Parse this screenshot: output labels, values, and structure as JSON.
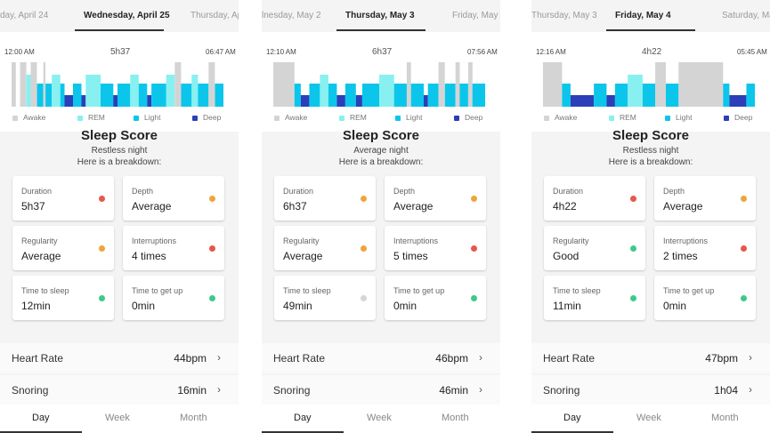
{
  "colors": {
    "awake": "#d4d4d4",
    "rem": "#88f0f0",
    "light": "#0bc6ea",
    "deep": "#2c3fb8",
    "status_red": "#e5584a",
    "status_orange": "#f0a43a",
    "status_green": "#3ec98a",
    "status_grey": "#d6d6d6"
  },
  "legend": [
    "Awake",
    "REM",
    "Light",
    "Deep"
  ],
  "bottom_tabs": [
    "Day",
    "Week",
    "Month"
  ],
  "labels": {
    "duration": "Duration",
    "depth": "Depth",
    "regularity": "Regularity",
    "interruptions": "Interruptions",
    "time_to_sleep": "Time to sleep",
    "time_to_get_up": "Time to get up",
    "heart_rate": "Heart Rate",
    "snoring": "Snoring",
    "breakdown": "Here is a breakdown:",
    "score_title": "Sleep Score"
  },
  "panels": [
    {
      "date_prev": "day, April 24",
      "date_active": "Wednesday, April 25",
      "date_next": "Thursday, Ap",
      "start_time": "12:00 AM",
      "total": "5h37",
      "end_time": "06:47 AM",
      "score_title": "Sleep Score",
      "quality": "Restless night",
      "metrics": {
        "duration": {
          "value": "5h37",
          "status": "red"
        },
        "depth": {
          "value": "Average",
          "status": "orange"
        },
        "regularity": {
          "value": "Average",
          "status": "orange"
        },
        "interruptions": {
          "value": "4 times",
          "status": "red"
        },
        "time_to_sleep": {
          "value": "12min",
          "status": "green"
        },
        "time_to_get_up": {
          "value": "0min",
          "status": "green"
        }
      },
      "heart_rate": "44bpm",
      "snoring": "16min",
      "active_tab": "Day",
      "hypnogram": [
        [
          "awake",
          0.0,
          0.02
        ],
        [
          "awake",
          0.04,
          0.07
        ],
        [
          "rem",
          0.07,
          0.09
        ],
        [
          "awake",
          0.09,
          0.12
        ],
        [
          "light",
          0.12,
          0.15
        ],
        [
          "awake",
          0.15,
          0.16
        ],
        [
          "light",
          0.16,
          0.19
        ],
        [
          "rem",
          0.19,
          0.23
        ],
        [
          "light",
          0.23,
          0.25
        ],
        [
          "deep",
          0.25,
          0.29
        ],
        [
          "light",
          0.29,
          0.33
        ],
        [
          "deep",
          0.33,
          0.35
        ],
        [
          "rem",
          0.35,
          0.42
        ],
        [
          "light",
          0.42,
          0.48
        ],
        [
          "deep",
          0.48,
          0.5
        ],
        [
          "light",
          0.5,
          0.56
        ],
        [
          "rem",
          0.56,
          0.6
        ],
        [
          "light",
          0.6,
          0.64
        ],
        [
          "deep",
          0.64,
          0.66
        ],
        [
          "light",
          0.66,
          0.73
        ],
        [
          "rem",
          0.73,
          0.77
        ],
        [
          "awake",
          0.77,
          0.8
        ],
        [
          "light",
          0.8,
          0.85
        ],
        [
          "rem",
          0.85,
          0.88
        ],
        [
          "light",
          0.88,
          0.93
        ],
        [
          "awake",
          0.93,
          0.96
        ],
        [
          "light",
          0.96,
          1.0
        ]
      ]
    },
    {
      "date_prev": "lnesday, May 2",
      "date_active": "Thursday, May 3",
      "date_next": "Friday, May 4",
      "start_time": "12:10 AM",
      "total": "6h37",
      "end_time": "07:56 AM",
      "score_title": "Sleep Score",
      "quality": "Average night",
      "metrics": {
        "duration": {
          "value": "6h37",
          "status": "orange"
        },
        "depth": {
          "value": "Average",
          "status": "orange"
        },
        "regularity": {
          "value": "Average",
          "status": "orange"
        },
        "interruptions": {
          "value": "5 times",
          "status": "red"
        },
        "time_to_sleep": {
          "value": "49min",
          "status": "grey"
        },
        "time_to_get_up": {
          "value": "0min",
          "status": "green"
        }
      },
      "heart_rate": "46bpm",
      "snoring": "46min",
      "active_tab": "Day",
      "hypnogram": [
        [
          "awake",
          0.0,
          0.1
        ],
        [
          "light",
          0.1,
          0.13
        ],
        [
          "deep",
          0.13,
          0.17
        ],
        [
          "light",
          0.17,
          0.22
        ],
        [
          "rem",
          0.22,
          0.26
        ],
        [
          "light",
          0.26,
          0.3
        ],
        [
          "deep",
          0.3,
          0.34
        ],
        [
          "light",
          0.34,
          0.39
        ],
        [
          "deep",
          0.39,
          0.42
        ],
        [
          "light",
          0.42,
          0.5
        ],
        [
          "rem",
          0.5,
          0.57
        ],
        [
          "light",
          0.57,
          0.63
        ],
        [
          "awake",
          0.63,
          0.65
        ],
        [
          "light",
          0.65,
          0.71
        ],
        [
          "deep",
          0.71,
          0.73
        ],
        [
          "light",
          0.73,
          0.78
        ],
        [
          "awake",
          0.78,
          0.81
        ],
        [
          "light",
          0.81,
          0.86
        ],
        [
          "awake",
          0.86,
          0.88
        ],
        [
          "light",
          0.88,
          0.92
        ],
        [
          "awake",
          0.92,
          0.94
        ],
        [
          "light",
          0.94,
          1.0
        ]
      ]
    },
    {
      "date_prev": "Thursday, May 3",
      "date_active": "Friday, May 4",
      "date_next": "Saturday, May",
      "start_time": "12:16 AM",
      "total": "4h22",
      "end_time": "05:45 AM",
      "score_title": "Sleep Score",
      "quality": "Restless night",
      "metrics": {
        "duration": {
          "value": "4h22",
          "status": "red"
        },
        "depth": {
          "value": "Average",
          "status": "orange"
        },
        "regularity": {
          "value": "Good",
          "status": "green"
        },
        "interruptions": {
          "value": "2 times",
          "status": "red"
        },
        "time_to_sleep": {
          "value": "11min",
          "status": "green"
        },
        "time_to_get_up": {
          "value": "0min",
          "status": "green"
        }
      },
      "heart_rate": "47bpm",
      "snoring": "1h04",
      "active_tab": "Day",
      "hypnogram": [
        [
          "awake",
          0.0,
          0.09
        ],
        [
          "light",
          0.09,
          0.13
        ],
        [
          "deep",
          0.13,
          0.24
        ],
        [
          "light",
          0.24,
          0.3
        ],
        [
          "deep",
          0.3,
          0.34
        ],
        [
          "light",
          0.34,
          0.4
        ],
        [
          "rem",
          0.4,
          0.47
        ],
        [
          "light",
          0.47,
          0.53
        ],
        [
          "awake",
          0.53,
          0.58
        ],
        [
          "light",
          0.58,
          0.64
        ],
        [
          "awake",
          0.64,
          0.85
        ],
        [
          "light",
          0.85,
          0.88
        ],
        [
          "deep",
          0.88,
          0.96
        ],
        [
          "light",
          0.96,
          1.0
        ]
      ]
    }
  ]
}
